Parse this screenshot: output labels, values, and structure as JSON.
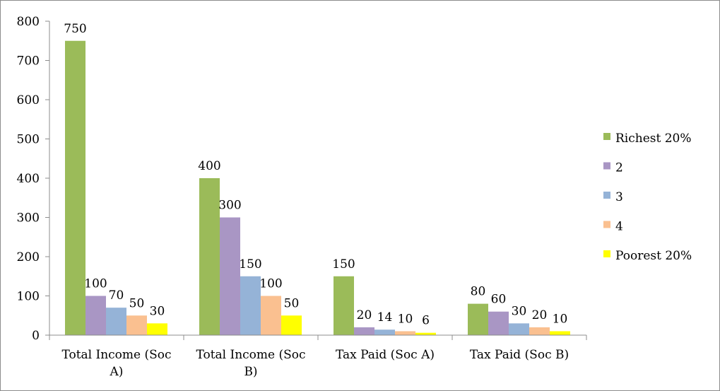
{
  "chart_data": {
    "type": "bar",
    "title": "",
    "xlabel": "",
    "ylabel": "",
    "ylim": [
      0,
      800
    ],
    "yticks": [
      "0",
      "100",
      "200",
      "300",
      "400",
      "500",
      "600",
      "700",
      "800"
    ],
    "grid": false,
    "legend_position": "right",
    "categories": [
      [
        "Total Income (Soc",
        "A)"
      ],
      [
        "Total Income (Soc",
        "B)"
      ],
      [
        "Tax Paid (Soc A)"
      ],
      [
        "Tax Paid (Soc B)"
      ]
    ],
    "series": [
      {
        "name": "Richest 20%",
        "color": "#9bbb59",
        "values": [
          750,
          400,
          150,
          80
        ]
      },
      {
        "name": "2",
        "color": "#a996c4",
        "values": [
          100,
          300,
          20,
          60
        ]
      },
      {
        "name": "3",
        "color": "#95b3d7",
        "values": [
          70,
          150,
          14,
          30
        ]
      },
      {
        "name": "4",
        "color": "#fac090",
        "values": [
          50,
          100,
          10,
          20
        ]
      },
      {
        "name": "Poorest 20%",
        "color": "#ffff00",
        "values": [
          30,
          50,
          6,
          10
        ]
      }
    ]
  }
}
